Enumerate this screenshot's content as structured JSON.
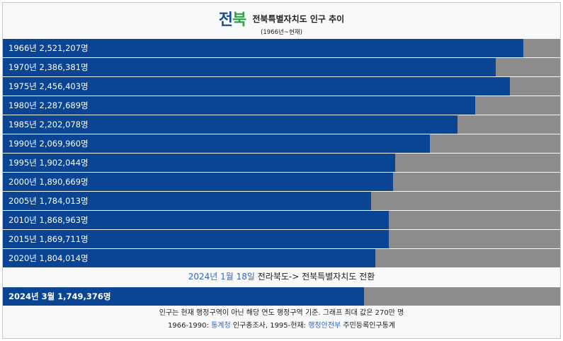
{
  "header": {
    "logo_main": "전",
    "logo_accent": "북",
    "title": "전북특별자치도 인구 추이",
    "subtitle": "(1966년~현재)"
  },
  "chart_data": {
    "type": "bar",
    "orientation": "horizontal",
    "title": "전북특별자치도 인구 추이",
    "subtitle": "(1966년~현재)",
    "xlim": [
      0,
      2700000
    ],
    "categories": [
      "1966년",
      "1970년",
      "1975년",
      "1980년",
      "1985년",
      "1990년",
      "1995년",
      "2000년",
      "2005년",
      "2010년",
      "2015년",
      "2020년",
      "2024년 3월"
    ],
    "values": [
      2521207,
      2386381,
      2456403,
      2287689,
      2202078,
      2069960,
      1902044,
      1890669,
      1784013,
      1868963,
      1869711,
      1804014,
      1749376
    ],
    "labels": [
      "1966년 2,521,207명",
      "1970년 2,386,381명",
      "1975년 2,456,403명",
      "1980년 2,287,689명",
      "1985년 2,202,078명",
      "1990년 2,069,960명",
      "1995년 1,902,044명",
      "2000년 1,890,669명",
      "2005년 1,784,013명",
      "2010년 1,868,963명",
      "2015년 1,869,711명",
      "2020년 1,804,014명",
      "2024년 3월 1,749,376명"
    ],
    "bar_color": "#0b4493",
    "track_color": "#8c8c8c"
  },
  "note": {
    "date_link": "2024년 1월 18일",
    "text": " 전라북도-> 전북특별자치도 전환"
  },
  "footer": {
    "line1": "인구는 현재 행정구역이 아닌 해당 연도 행정구역 기준. 그래프 최대 값은 270만 명",
    "line2_pre": "1966-1990: ",
    "line2_link1": "통계청",
    "line2_mid": " 인구총조사, 1995-현재: ",
    "line2_link2": "행정안전부",
    "line2_post": " 주민등록인구통계"
  }
}
